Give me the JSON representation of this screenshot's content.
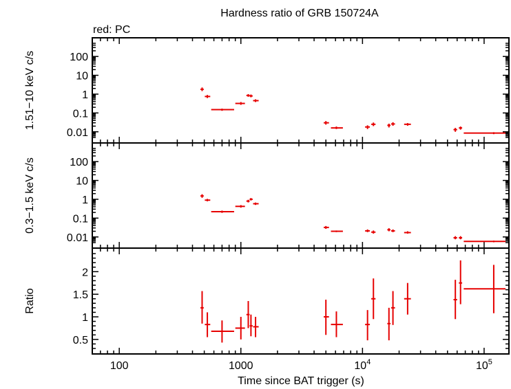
{
  "chart_data": {
    "type": "scatter",
    "title": "Hardness ratio of GRB 150724A",
    "subtitle": "red: PC",
    "xlabel": "Time since BAT trigger (s)",
    "x_scale": "log",
    "xlim": [
      60,
      160000
    ],
    "x_ticks": [
      {
        "value": 100,
        "base": "100",
        "exp": ""
      },
      {
        "value": 1000,
        "base": "1000",
        "exp": ""
      },
      {
        "value": 10000,
        "base": "10",
        "exp": "4"
      },
      {
        "value": 100000,
        "base": "10",
        "exp": "5"
      }
    ],
    "series_color": "#e60000",
    "panels": [
      {
        "name": "hard",
        "ylabel": "1.51−10 keV c/s",
        "y_scale": "log",
        "ylim": [
          0.005,
          500
        ],
        "y_ticks": [
          "0.01",
          "0.1",
          "1",
          "10",
          "100"
        ],
        "points": [
          {
            "x": 480,
            "xlo": 465,
            "xhi": 495,
            "y": 1.8,
            "ylo": 1.45,
            "yhi": 2.25
          },
          {
            "x": 530,
            "xlo": 505,
            "xhi": 560,
            "y": 0.75,
            "ylo": 0.62,
            "yhi": 0.9
          },
          {
            "x": 700,
            "xlo": 570,
            "xhi": 880,
            "y": 0.15,
            "ylo": 0.13,
            "yhi": 0.17
          },
          {
            "x": 1000,
            "xlo": 900,
            "xhi": 1080,
            "y": 0.32,
            "ylo": 0.27,
            "yhi": 0.38
          },
          {
            "x": 1150,
            "xlo": 1110,
            "xhi": 1180,
            "y": 0.85,
            "ylo": 0.72,
            "yhi": 1.0
          },
          {
            "x": 1210,
            "xlo": 1180,
            "xhi": 1250,
            "y": 0.8,
            "ylo": 0.68,
            "yhi": 0.95
          },
          {
            "x": 1320,
            "xlo": 1260,
            "xhi": 1400,
            "y": 0.45,
            "ylo": 0.38,
            "yhi": 0.53
          },
          {
            "x": 5000,
            "xlo": 4800,
            "xhi": 5300,
            "y": 0.03,
            "ylo": 0.024,
            "yhi": 0.037
          },
          {
            "x": 6100,
            "xlo": 5500,
            "xhi": 6900,
            "y": 0.016,
            "ylo": 0.014,
            "yhi": 0.019
          },
          {
            "x": 11000,
            "xlo": 10500,
            "xhi": 11500,
            "y": 0.018,
            "ylo": 0.014,
            "yhi": 0.022
          },
          {
            "x": 12300,
            "xlo": 11800,
            "xhi": 12800,
            "y": 0.025,
            "ylo": 0.02,
            "yhi": 0.031
          },
          {
            "x": 16500,
            "xlo": 16000,
            "xhi": 17000,
            "y": 0.022,
            "ylo": 0.017,
            "yhi": 0.027
          },
          {
            "x": 17800,
            "xlo": 17200,
            "xhi": 18500,
            "y": 0.026,
            "ylo": 0.021,
            "yhi": 0.032
          },
          {
            "x": 23500,
            "xlo": 22000,
            "xhi": 25000,
            "y": 0.025,
            "ylo": 0.021,
            "yhi": 0.029
          },
          {
            "x": 58000,
            "xlo": 56000,
            "xhi": 60000,
            "y": 0.013,
            "ylo": 0.01,
            "yhi": 0.016
          },
          {
            "x": 64000,
            "xlo": 62000,
            "xhi": 66000,
            "y": 0.016,
            "ylo": 0.013,
            "yhi": 0.019
          },
          {
            "x": 120000,
            "xlo": 68000,
            "xhi": 150000,
            "y": 0.0085,
            "ylo": 0.0075,
            "yhi": 0.0095
          }
        ]
      },
      {
        "name": "soft",
        "ylabel": "0.3−1.5 keV c/s",
        "y_scale": "log",
        "ylim": [
          0.005,
          500
        ],
        "y_ticks": [
          "0.01",
          "0.1",
          "1",
          "10",
          "100"
        ],
        "points": [
          {
            "x": 480,
            "xlo": 465,
            "xhi": 495,
            "y": 1.5,
            "ylo": 1.2,
            "yhi": 1.85
          },
          {
            "x": 530,
            "xlo": 505,
            "xhi": 560,
            "y": 0.9,
            "ylo": 0.78,
            "yhi": 1.05
          },
          {
            "x": 700,
            "xlo": 570,
            "xhi": 880,
            "y": 0.22,
            "ylo": 0.19,
            "yhi": 0.25
          },
          {
            "x": 1000,
            "xlo": 900,
            "xhi": 1080,
            "y": 0.42,
            "ylo": 0.36,
            "yhi": 0.49
          },
          {
            "x": 1150,
            "xlo": 1110,
            "xhi": 1180,
            "y": 0.8,
            "ylo": 0.68,
            "yhi": 0.94
          },
          {
            "x": 1210,
            "xlo": 1180,
            "xhi": 1250,
            "y": 1.0,
            "ylo": 0.86,
            "yhi": 1.16
          },
          {
            "x": 1320,
            "xlo": 1260,
            "xhi": 1400,
            "y": 0.58,
            "ylo": 0.5,
            "yhi": 0.67
          },
          {
            "x": 5000,
            "xlo": 4800,
            "xhi": 5300,
            "y": 0.032,
            "ylo": 0.027,
            "yhi": 0.038
          },
          {
            "x": 6100,
            "xlo": 5500,
            "xhi": 6900,
            "y": 0.02,
            "ylo": 0.018,
            "yhi": 0.022
          },
          {
            "x": 11000,
            "xlo": 10500,
            "xhi": 11500,
            "y": 0.021,
            "ylo": 0.018,
            "yhi": 0.025
          },
          {
            "x": 12300,
            "xlo": 11800,
            "xhi": 12800,
            "y": 0.018,
            "ylo": 0.015,
            "yhi": 0.022
          },
          {
            "x": 16500,
            "xlo": 16000,
            "xhi": 17000,
            "y": 0.024,
            "ylo": 0.02,
            "yhi": 0.029
          },
          {
            "x": 17800,
            "xlo": 17200,
            "xhi": 18500,
            "y": 0.021,
            "ylo": 0.018,
            "yhi": 0.025
          },
          {
            "x": 23500,
            "xlo": 22000,
            "xhi": 25000,
            "y": 0.017,
            "ylo": 0.015,
            "yhi": 0.02
          },
          {
            "x": 58000,
            "xlo": 56000,
            "xhi": 60000,
            "y": 0.009,
            "ylo": 0.0075,
            "yhi": 0.011
          },
          {
            "x": 64000,
            "xlo": 62000,
            "xhi": 66000,
            "y": 0.009,
            "ylo": 0.0075,
            "yhi": 0.011
          },
          {
            "x": 120000,
            "xlo": 68000,
            "xhi": 150000,
            "y": 0.0058,
            "ylo": 0.0052,
            "yhi": 0.0064
          }
        ]
      },
      {
        "name": "ratio",
        "ylabel": "Ratio",
        "y_scale": "linear",
        "ylim": [
          0.3,
          2.4
        ],
        "y_ticks": [
          "0.5",
          "1",
          "1.5",
          "2"
        ],
        "points": [
          {
            "x": 480,
            "xlo": 465,
            "xhi": 495,
            "y": 1.2,
            "ylo": 0.85,
            "yhi": 1.57
          },
          {
            "x": 530,
            "xlo": 505,
            "xhi": 560,
            "y": 0.83,
            "ylo": 0.55,
            "yhi": 1.1
          },
          {
            "x": 700,
            "xlo": 570,
            "xhi": 880,
            "y": 0.68,
            "ylo": 0.43,
            "yhi": 0.92
          },
          {
            "x": 1000,
            "xlo": 900,
            "xhi": 1080,
            "y": 0.75,
            "ylo": 0.5,
            "yhi": 1.0
          },
          {
            "x": 1150,
            "xlo": 1110,
            "xhi": 1180,
            "y": 1.05,
            "ylo": 0.75,
            "yhi": 1.35
          },
          {
            "x": 1210,
            "xlo": 1180,
            "xhi": 1250,
            "y": 0.8,
            "ylo": 0.57,
            "yhi": 1.05
          },
          {
            "x": 1320,
            "xlo": 1260,
            "xhi": 1400,
            "y": 0.78,
            "ylo": 0.55,
            "yhi": 1.0
          },
          {
            "x": 5000,
            "xlo": 4800,
            "xhi": 5300,
            "y": 1.0,
            "ylo": 0.6,
            "yhi": 1.38
          },
          {
            "x": 6100,
            "xlo": 5500,
            "xhi": 6900,
            "y": 0.83,
            "ylo": 0.55,
            "yhi": 1.12
          },
          {
            "x": 11000,
            "xlo": 10500,
            "xhi": 11500,
            "y": 0.83,
            "ylo": 0.48,
            "yhi": 1.15
          },
          {
            "x": 12300,
            "xlo": 11800,
            "xhi": 12800,
            "y": 1.4,
            "ylo": 0.95,
            "yhi": 1.85
          },
          {
            "x": 16500,
            "xlo": 16000,
            "xhi": 17000,
            "y": 0.85,
            "ylo": 0.48,
            "yhi": 1.2
          },
          {
            "x": 17800,
            "xlo": 17200,
            "xhi": 18500,
            "y": 1.2,
            "ylo": 0.82,
            "yhi": 1.57
          },
          {
            "x": 23500,
            "xlo": 22000,
            "xhi": 25000,
            "y": 1.4,
            "ylo": 1.05,
            "yhi": 1.75
          },
          {
            "x": 58000,
            "xlo": 56000,
            "xhi": 60000,
            "y": 1.38,
            "ylo": 0.95,
            "yhi": 1.82
          },
          {
            "x": 64000,
            "xlo": 62000,
            "xhi": 66000,
            "y": 1.75,
            "ylo": 1.28,
            "yhi": 2.25
          },
          {
            "x": 120000,
            "xlo": 68000,
            "xhi": 150000,
            "y": 1.62,
            "ylo": 1.08,
            "yhi": 2.15
          }
        ]
      }
    ]
  }
}
